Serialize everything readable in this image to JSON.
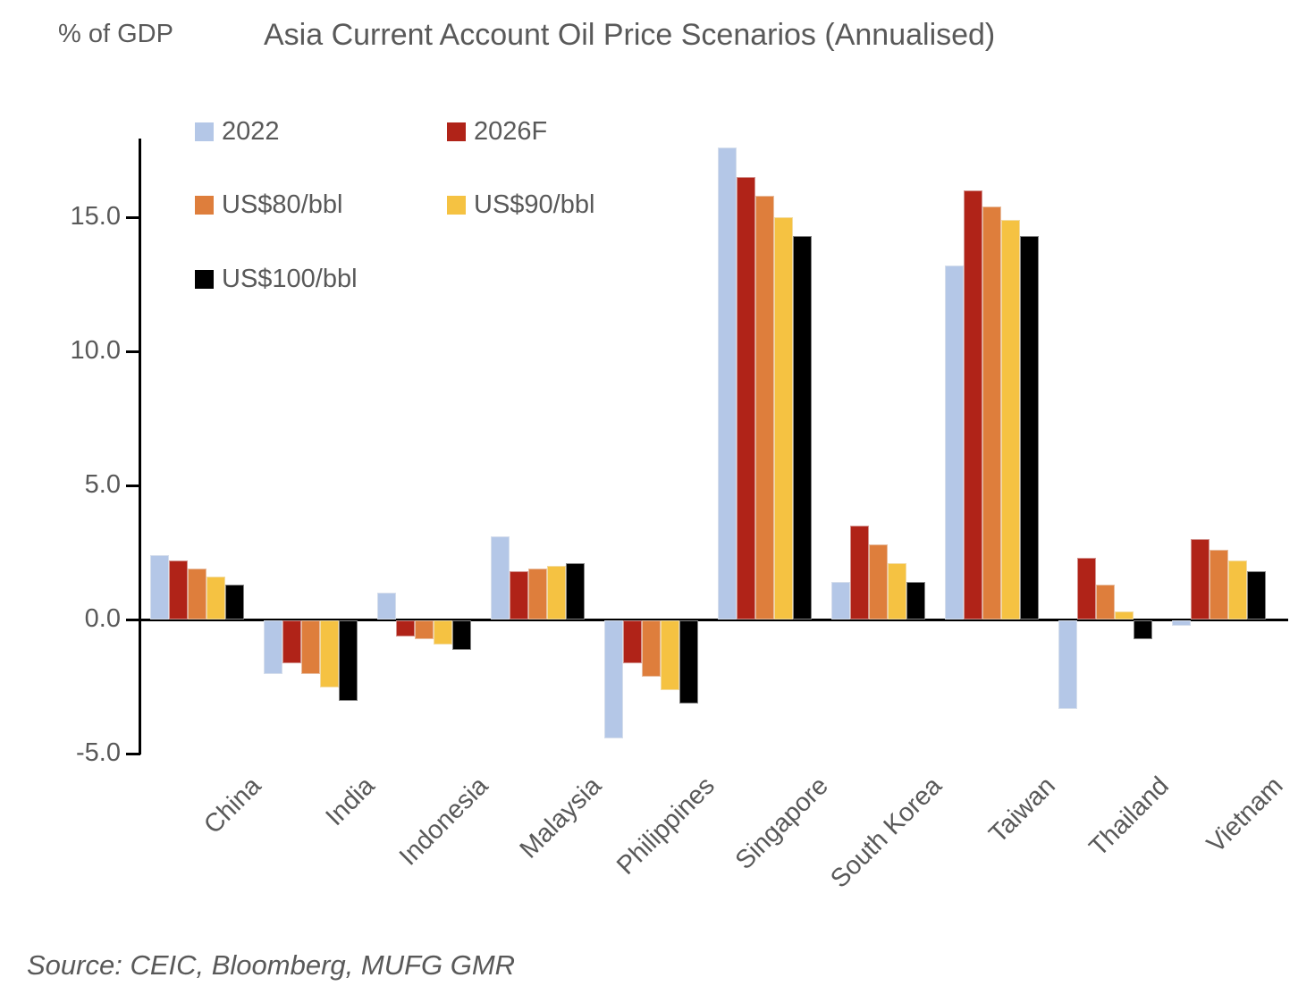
{
  "header": {
    "y_axis_label": "% of GDP",
    "title": "Asia Current Account Oil Price Scenarios (Annualised)"
  },
  "source": "Source: CEIC, Bloomberg, MUFG GMR",
  "colors": {
    "text_gray": "#595959",
    "axis_black": "#000000",
    "series_2022": "#B4C7E7",
    "series_2026F": "#B02318",
    "series_us80": "#DE7E3C",
    "series_us90": "#F5C242",
    "series_us100": "#000000"
  },
  "chart_data": {
    "type": "bar",
    "title": "Asia Current Account Oil Price Scenarios (Annualised)",
    "ylabel": "% of GDP",
    "ylim": [
      -5,
      18
    ],
    "yticks": [
      15.0,
      10.0,
      5.0,
      0.0,
      -5.0
    ],
    "grid": false,
    "legend_position": "top-left-inside",
    "categories": [
      "China",
      "India",
      "Indonesia",
      "Malaysia",
      "Philippines",
      "Singapore",
      "South Korea",
      "Taiwan",
      "Thailand",
      "Vietnam"
    ],
    "series": [
      {
        "name": "2022",
        "color": "#B4C7E7",
        "values": [
          2.4,
          -2.0,
          1.0,
          3.1,
          -4.4,
          17.6,
          1.4,
          13.2,
          -3.3,
          -0.2
        ]
      },
      {
        "name": "2026F",
        "color": "#B02318",
        "values": [
          2.2,
          -1.6,
          -0.6,
          1.8,
          -1.6,
          16.5,
          3.5,
          16.0,
          2.3,
          3.0
        ]
      },
      {
        "name": "US$80/bbl",
        "color": "#DE7E3C",
        "values": [
          1.9,
          -2.0,
          -0.7,
          1.9,
          -2.1,
          15.8,
          2.8,
          15.4,
          1.3,
          2.6
        ]
      },
      {
        "name": "US$90/bbl",
        "color": "#F5C242",
        "values": [
          1.6,
          -2.5,
          -0.9,
          2.0,
          -2.6,
          15.0,
          2.1,
          14.9,
          0.3,
          2.2
        ]
      },
      {
        "name": "US$100/bbl",
        "color": "#000000",
        "values": [
          1.3,
          -3.0,
          -1.1,
          2.1,
          -3.1,
          14.3,
          1.4,
          14.3,
          -0.7,
          1.8
        ]
      }
    ]
  }
}
